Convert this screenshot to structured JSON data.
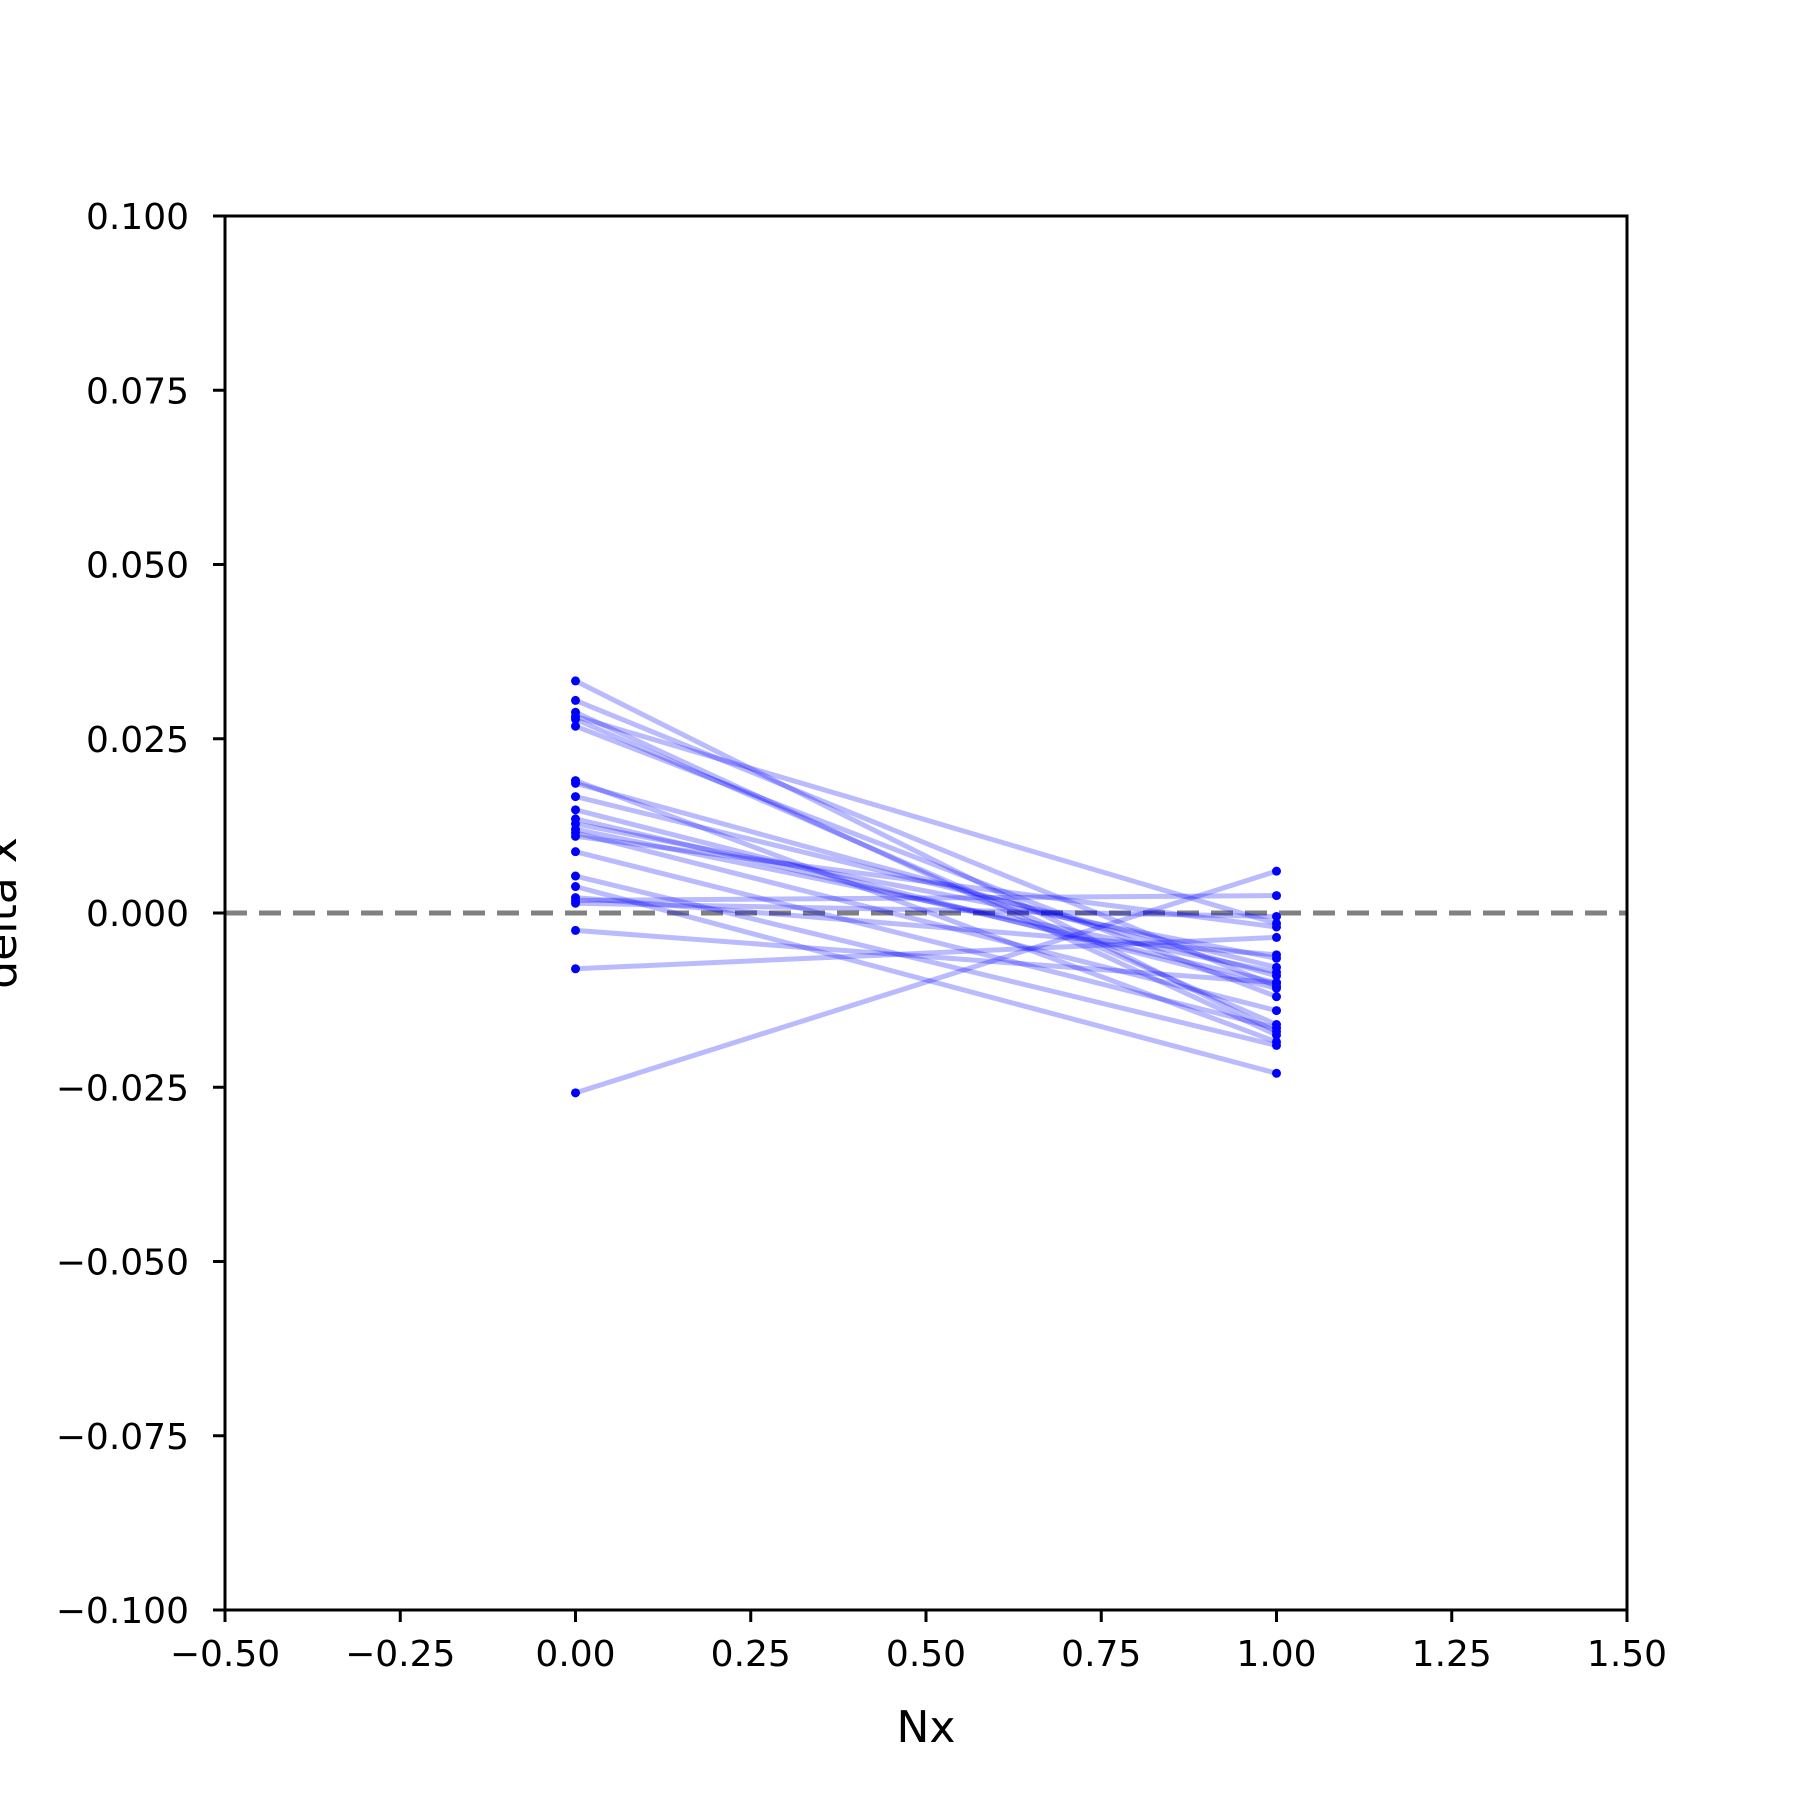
{
  "chart_data": {
    "type": "line",
    "title": "",
    "xlabel": "Nx",
    "ylabel": "delta x",
    "xlim": [
      -0.5,
      1.5
    ],
    "ylim": [
      -0.1,
      0.1
    ],
    "xticks": [
      -0.5,
      -0.25,
      0.0,
      0.25,
      0.5,
      0.75,
      1.0,
      1.25,
      1.5
    ],
    "xtick_labels": [
      "−0.50",
      "−0.25",
      "0.00",
      "0.25",
      "0.50",
      "0.75",
      "1.00",
      "1.25",
      "1.50"
    ],
    "yticks": [
      0.1,
      0.075,
      0.05,
      0.025,
      0.0,
      -0.025,
      -0.05,
      -0.075,
      -0.1
    ],
    "ytick_labels": [
      "0.100",
      "0.075",
      "0.050",
      "0.025",
      "0.000",
      "−0.025",
      "−0.050",
      "−0.075",
      "−0.100"
    ],
    "grid": false,
    "reference_line": {
      "y": 0.0,
      "style": "dashed",
      "color": "#808080"
    },
    "line_color": "#0000ff",
    "line_opacity": 0.27,
    "marker_color": "#0000ff",
    "x": [
      0,
      1
    ],
    "series": [
      {
        "values": [
          0.0333,
          -0.017
        ]
      },
      {
        "values": [
          0.0305,
          -0.0105
        ]
      },
      {
        "values": [
          0.0288,
          -0.0175
        ]
      },
      {
        "values": [
          0.0282,
          -0.0015
        ]
      },
      {
        "values": [
          0.0278,
          -0.016
        ]
      },
      {
        "values": [
          0.0268,
          -0.012
        ]
      },
      {
        "values": [
          0.019,
          -0.0185
        ]
      },
      {
        "values": [
          0.0186,
          -0.009
        ]
      },
      {
        "values": [
          0.0167,
          -0.0078
        ]
      },
      {
        "values": [
          0.0148,
          -0.0108
        ]
      },
      {
        "values": [
          0.0135,
          -0.01
        ]
      },
      {
        "values": [
          0.0128,
          -0.0065
        ]
      },
      {
        "values": [
          0.012,
          -0.0085
        ]
      },
      {
        "values": [
          0.0115,
          -0.014
        ]
      },
      {
        "values": [
          0.011,
          -0.002
        ]
      },
      {
        "values": [
          0.0088,
          -0.0165
        ]
      },
      {
        "values": [
          0.0053,
          -0.019
        ]
      },
      {
        "values": [
          0.0038,
          -0.023
        ]
      },
      {
        "values": [
          0.0022,
          -0.006
        ]
      },
      {
        "values": [
          0.0018,
          0.0025
        ]
      },
      {
        "values": [
          0.0014,
          -0.0005
        ]
      },
      {
        "values": [
          -0.0025,
          -0.01
        ]
      },
      {
        "values": [
          -0.008,
          -0.0035
        ]
      },
      {
        "values": [
          -0.0258,
          0.006
        ]
      }
    ]
  }
}
